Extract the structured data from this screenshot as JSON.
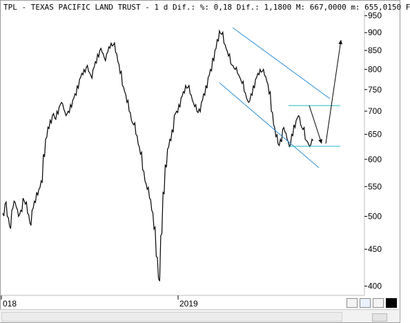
{
  "window": {
    "header_text": "TPL - TEXAS PACIFIC LAND TRUST -  1 d Dif.: %: 0,18 Dif.: 1,1800 M: 667,0000 m: 655,0150 F"
  },
  "chart_data": {
    "type": "line",
    "title": "TPL - TEXAS PACIFIC LAND TRUST",
    "scale": "log",
    "ylim": [
      390,
      960
    ],
    "y_ticks": [
      400,
      450,
      500,
      550,
      600,
      650,
      700,
      750,
      800,
      850,
      900,
      950
    ],
    "y_tick_labels": [
      "400",
      "450",
      "500",
      "550",
      "600",
      "650",
      "700",
      "750",
      "800",
      "850",
      "900",
      "950"
    ],
    "x_tick_labels": [
      "018",
      "2019"
    ],
    "grid": false,
    "series": [
      {
        "values": [
          505,
          520,
          500,
          485,
          510,
          525,
          515,
          500,
          510,
          530,
          520,
          505,
          490,
          510,
          525,
          540,
          545,
          560,
          610,
          640,
          665,
          680,
          690,
          685,
          700,
          710,
          720,
          705,
          690,
          700,
          715,
          725,
          740,
          760,
          775,
          790,
          800,
          805,
          795,
          785,
          800,
          820,
          840,
          850,
          845,
          830,
          840,
          860,
          870,
          865,
          845,
          820,
          790,
          760,
          745,
          720,
          700,
          680,
          670,
          650,
          630,
          610,
          580,
          560,
          545,
          530,
          510,
          480,
          440,
          410,
          470,
          540,
          590,
          620,
          640,
          660,
          690,
          700,
          715,
          730,
          745,
          760,
          755,
          740,
          725,
          710,
          700,
          705,
          720,
          740,
          760,
          780,
          800,
          830,
          850,
          880,
          905,
          895,
          870,
          855,
          835,
          815,
          810,
          800,
          790,
          780,
          765,
          745,
          730,
          720,
          740,
          760,
          775,
          790,
          800,
          795,
          785,
          770,
          740,
          700,
          670,
          645,
          630,
          640,
          660,
          655,
          640,
          625,
          650,
          670,
          680,
          690,
          670,
          660,
          640,
          635,
          625,
          640
        ]
      }
    ],
    "annotations": {
      "channel": "descending parallel channel (blue)",
      "rectangle": "horizontal range (cyan) ~ 625–710",
      "projection": "black zig-zag arrow: down to ~625 then up to ~870"
    }
  },
  "controls": {
    "zoom_icon": "zoom-icon",
    "save_icon": "save-icon",
    "pin_icon": "pin-icon",
    "color_icon": "color-square-icon",
    "scroll_icon": "scroll-thumb-icon"
  },
  "colors": {
    "price": "#000000",
    "channel": "#2f8fd8",
    "range": "#1fb6c8",
    "arrow": "#000000"
  }
}
